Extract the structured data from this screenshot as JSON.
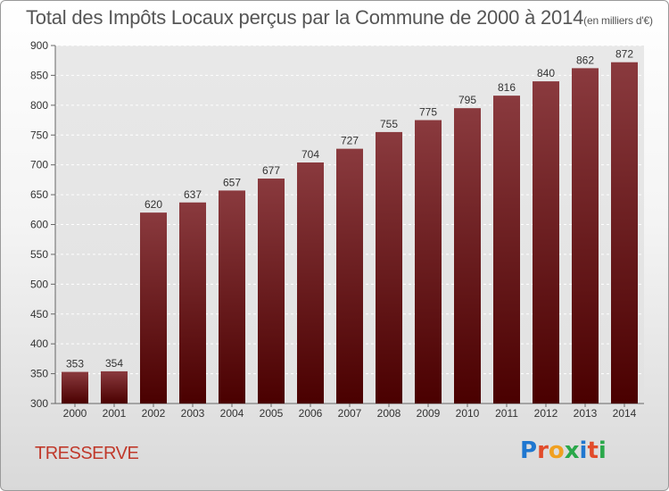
{
  "chart_data": {
    "type": "bar",
    "title": "Total des Impôts Locaux perçus par la Commune de 2000 à 2014",
    "subtitle": "(en milliers d'€)",
    "categories": [
      "2000",
      "2001",
      "2002",
      "2003",
      "2004",
      "2005",
      "2006",
      "2007",
      "2008",
      "2009",
      "2010",
      "2011",
      "2012",
      "2013",
      "2014"
    ],
    "values": [
      353,
      354,
      620,
      637,
      657,
      677,
      704,
      727,
      755,
      775,
      795,
      816,
      840,
      862,
      872
    ],
    "yticks": [
      300,
      350,
      400,
      450,
      500,
      550,
      600,
      650,
      700,
      750,
      800,
      850,
      900
    ],
    "ylim": [
      300,
      900
    ],
    "grid": true,
    "xlabel": "",
    "ylabel": ""
  },
  "commune": "TRESSERVE",
  "logo_letters": [
    "P",
    "r",
    "o",
    "x",
    "i",
    "t",
    "i"
  ],
  "colors": {
    "bar_top": "#8a3a3e",
    "bar_bottom": "#4a0000",
    "grid": "#ffffff",
    "logo": [
      "#1f77d0",
      "#e24b2a",
      "#f0a020",
      "#2aa84a",
      "#1f77d0",
      "#e24b2a",
      "#2aa84a"
    ]
  }
}
